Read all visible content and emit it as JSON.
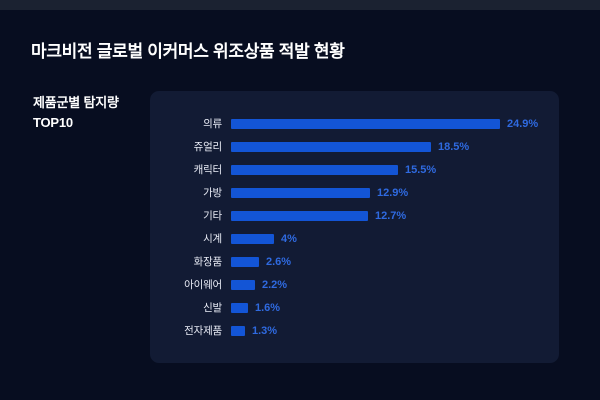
{
  "page": {
    "title": "마크비전 글로벌 이커머스 위조상품 적발 현황",
    "section_label_line1": "제품군별 탐지량",
    "section_label_line2": "TOP10"
  },
  "colors": {
    "background": "#070d20",
    "top_strip": "#1b2231",
    "panel": "#121b34",
    "bar": "#1355d6",
    "value_text": "#2f6ae0",
    "category_text": "#e8ebf5",
    "title_text": "#ffffff"
  },
  "chart_data": {
    "type": "bar",
    "orientation": "horizontal",
    "title": "제품군별 탐지량 TOP10",
    "categories": [
      "의류",
      "쥬얼리",
      "캐릭터",
      "가방",
      "기타",
      "시계",
      "화장품",
      "아이웨어",
      "신발",
      "전자제품"
    ],
    "values": [
      24.9,
      18.5,
      15.5,
      12.9,
      12.7,
      4,
      2.6,
      2.2,
      1.6,
      1.3
    ],
    "value_labels": [
      "24.9%",
      "18.5%",
      "15.5%",
      "12.9%",
      "12.7%",
      "4%",
      "2.6%",
      "2.2%",
      "1.6%",
      "1.3%"
    ],
    "unit": "%",
    "xlim": [
      0,
      26
    ],
    "grid": false,
    "legend": false,
    "value_label_position": "end-of-bar"
  }
}
